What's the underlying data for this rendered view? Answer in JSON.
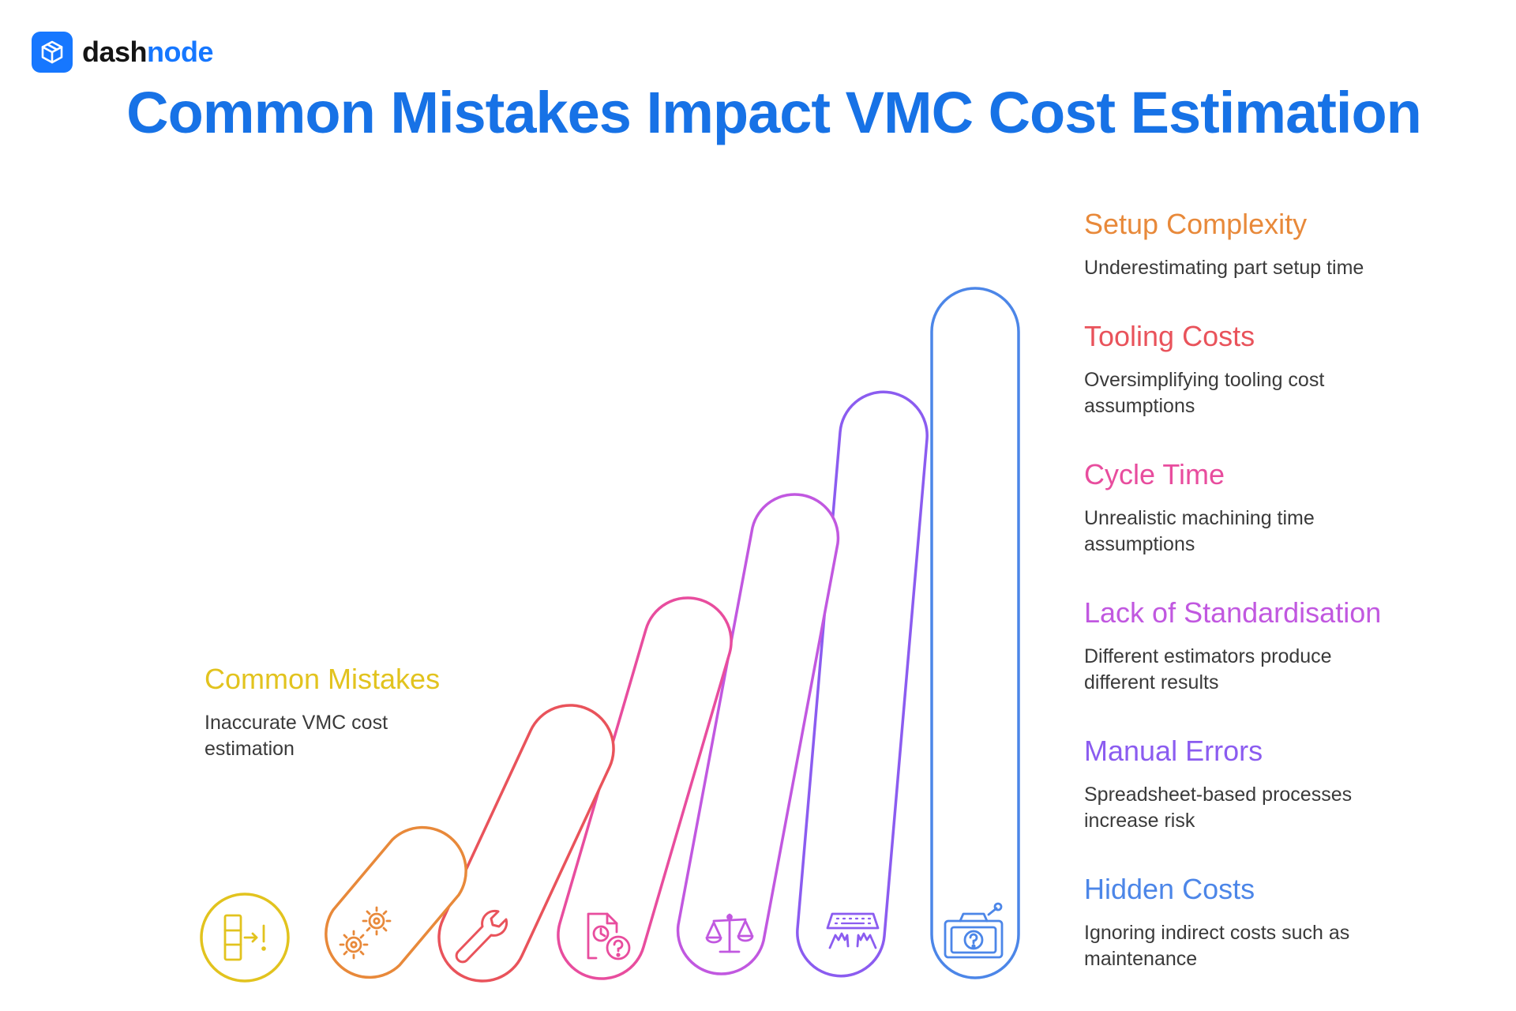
{
  "brand": {
    "name_part1": "dash",
    "name_part2": "node",
    "color": "#1677ff"
  },
  "title": "Common Mistakes Impact VMC Cost Estimation",
  "root": {
    "title": "Common Mistakes",
    "description": "Inaccurate VMC cost estimation",
    "color": "#e2c31e",
    "icon": "input-alert-icon"
  },
  "steps": [
    {
      "title": "Setup Complexity",
      "description": "Underestimating part setup time",
      "color": "#e8893a",
      "icon": "gears-icon"
    },
    {
      "title": "Tooling Costs",
      "description": "Oversimplifying tooling cost assumptions",
      "color": "#e9535b",
      "icon": "wrench-icon"
    },
    {
      "title": "Cycle Time",
      "description": "Unrealistic machining time assumptions",
      "color": "#e84d9e",
      "icon": "document-clock-question-icon"
    },
    {
      "title": "Lack of Standardisation",
      "description": "Different estimators produce different results",
      "color": "#c158e0",
      "icon": "balance-scale-icon"
    },
    {
      "title": "Manual Errors",
      "description": "Spreadsheet-based processes increase risk",
      "color": "#8b5cf0",
      "icon": "keyboard-hands-icon"
    },
    {
      "title": "Hidden Costs",
      "description": "Ignoring indirect costs such as maintenance",
      "color": "#4c86e8",
      "icon": "toolbox-question-icon"
    }
  ]
}
